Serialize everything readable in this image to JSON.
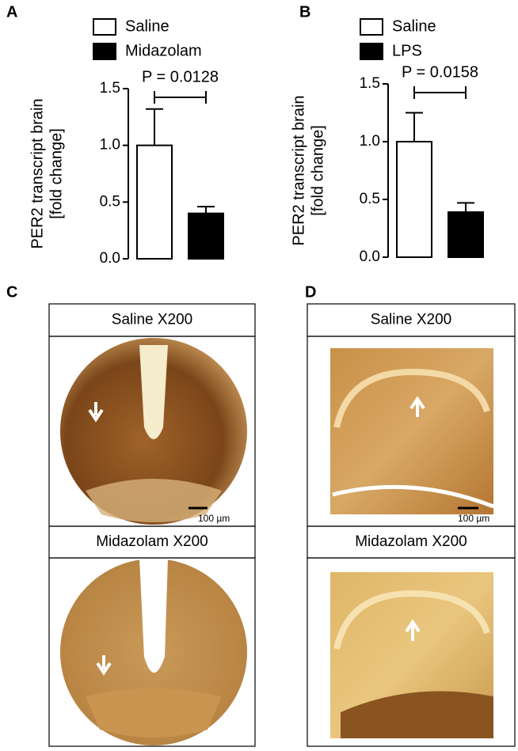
{
  "chart_data": [
    {
      "type": "bar",
      "label": "A",
      "ylabel": [
        "PER2 transcript brain",
        "[fold change]"
      ],
      "annotation": "P = 0.0128",
      "categories": [
        null
      ],
      "series": [
        {
          "name": "Saline",
          "color": "#ffffff",
          "values": [
            1.0
          ],
          "errors": [
            0.32
          ]
        },
        {
          "name": "Midazolam",
          "color": "#000000",
          "values": [
            0.4
          ],
          "errors": [
            0.06
          ]
        }
      ],
      "ylim": [
        0,
        1.5
      ],
      "yticks": [
        {
          "value": 0,
          "label": "0.0"
        },
        {
          "value": 0.5,
          "label": "0.5"
        },
        {
          "value": 1,
          "label": "1.0"
        },
        {
          "value": 1.5,
          "label": "1.5"
        }
      ]
    },
    {
      "type": "bar",
      "label": "B",
      "ylabel": [
        "PER2 transcript brain",
        "[fold change]"
      ],
      "annotation": "P = 0.0158",
      "categories": [
        null
      ],
      "series": [
        {
          "name": "Saline",
          "color": "#ffffff",
          "values": [
            1.0
          ],
          "errors": [
            0.25
          ]
        },
        {
          "name": "LPS",
          "color": "#000000",
          "values": [
            0.39
          ],
          "errors": [
            0.08
          ]
        }
      ],
      "ylim": [
        0,
        1.5
      ],
      "yticks": [
        {
          "value": 0,
          "label": "0.0"
        },
        {
          "value": 0.5,
          "label": "0.5"
        },
        {
          "value": 1,
          "label": "1.0"
        },
        {
          "value": 1.5,
          "label": "1.5"
        }
      ]
    }
  ],
  "micrographs": [
    {
      "label": "C",
      "panels": [
        {
          "title": "Saline X200",
          "scale_bar": "100 µm"
        },
        {
          "title": "Midazolam X200"
        }
      ]
    },
    {
      "label": "D",
      "panels": [
        {
          "title": "Saline X200",
          "scale_bar": "100 µm"
        },
        {
          "title": "Midazolam X200"
        }
      ]
    }
  ]
}
